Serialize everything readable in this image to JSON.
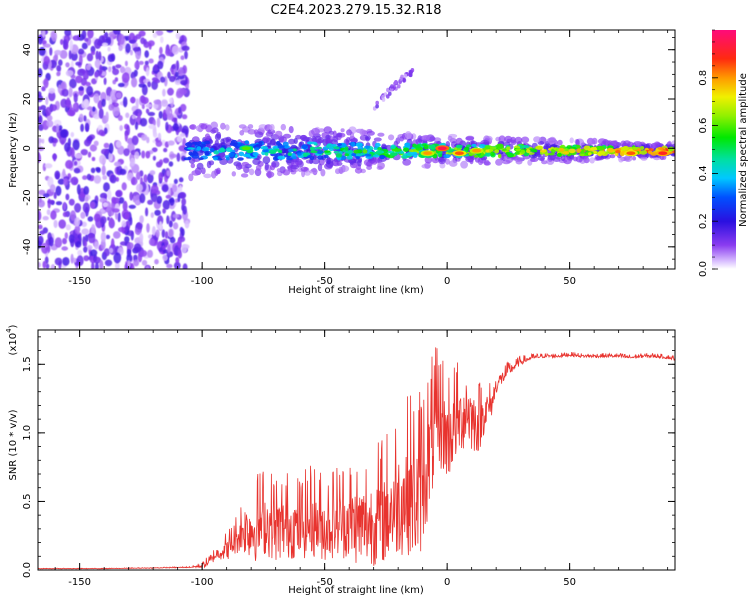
{
  "figure": {
    "title": "C2E4.2023.279.15.32.R18"
  },
  "chart_data": [
    {
      "type": "heatmap",
      "title": "C2E4.2023.279.15.32.R18",
      "xlabel": "Height of straight line (km)",
      "ylabel": "Frequency (Hz)",
      "xlim": [
        -167,
        93
      ],
      "ylim": [
        -49,
        48
      ],
      "xticks": [
        -150,
        -100,
        -50,
        0,
        50
      ],
      "yticks": [
        -40,
        -20,
        0,
        20,
        40
      ],
      "xtick_labels": [
        "-150",
        "-100",
        "-50",
        "0",
        "50"
      ],
      "ytick_labels": [
        "-40",
        "-20",
        "0",
        "20",
        "40"
      ],
      "colorbar": {
        "label": "Normalized spectral amplitude",
        "range": [
          0,
          1
        ],
        "ticks": [
          0.0,
          0.2,
          0.4,
          0.6,
          0.8
        ],
        "tick_labels": [
          "0.0",
          "0.2",
          "0.4",
          "0.6",
          "0.8"
        ],
        "colormap": "rainbow (white-purple-blue-cyan-green-yellow-orange-red-magenta)"
      },
      "features": [
        {
          "name": "broadband noise",
          "x_range": [
            -167,
            -106
          ],
          "y_range": [
            -49,
            48
          ],
          "amplitude": 0.1
        },
        {
          "name": "signal band",
          "x_range": [
            -106,
            93
          ],
          "center_hz": 0,
          "half_width_hz_start": 7,
          "half_width_hz_end": 2,
          "amplitude_start": 0.35,
          "amplitude_end": 0.85
        },
        {
          "name": "streak",
          "x_range": [
            -30,
            -14
          ],
          "y_range": [
            17,
            32
          ],
          "amplitude": 0.12
        }
      ],
      "hot_spots": [
        {
          "x": -82,
          "y": 0,
          "value": 0.6
        },
        {
          "x": -8,
          "y": -2,
          "value": 0.8
        },
        {
          "x": -2,
          "y": 0,
          "value": 0.95
        },
        {
          "x": 5,
          "y": -2,
          "value": 0.85
        },
        {
          "x": 12,
          "y": -1,
          "value": 0.8
        },
        {
          "x": 75,
          "y": -2,
          "value": 0.85
        },
        {
          "x": 88,
          "y": -2,
          "value": 0.9
        }
      ]
    },
    {
      "type": "line",
      "xlabel": "Height of straight line (km)",
      "ylabel": "SNR (10 * v/v)",
      "y_multiplier_label": "(x10",
      "y_multiplier_exp": "4",
      "y_multiplier_close": ")",
      "xlim": [
        -167,
        93
      ],
      "ylim": [
        0,
        1.75
      ],
      "xticks": [
        -150,
        -100,
        -50,
        0,
        50
      ],
      "yticks": [
        0.0,
        0.5,
        1.0,
        1.5
      ],
      "xtick_labels": [
        "-150",
        "-100",
        "-50",
        "0",
        "50"
      ],
      "ytick_labels": [
        "0.0",
        "0.5",
        "1.0",
        "1.5"
      ],
      "color": "#e8332e",
      "series": [
        {
          "name": "SNR",
          "x": [
            -167,
            -140,
            -120,
            -105,
            -100,
            -97,
            -94,
            -90,
            -87,
            -84,
            -82,
            -78,
            -75,
            -70,
            -65,
            -60,
            -55,
            -50,
            -45,
            -40,
            -35,
            -30,
            -25,
            -20,
            -15,
            -12,
            -9,
            -5,
            -2,
            0,
            3,
            6,
            8,
            10,
            13,
            15,
            18,
            20,
            25,
            30,
            35,
            40,
            45,
            50,
            55,
            60,
            65,
            70,
            75,
            80,
            85,
            90,
            93
          ],
          "values": [
            0.01,
            0.01,
            0.015,
            0.02,
            0.03,
            0.06,
            0.12,
            0.15,
            0.2,
            0.28,
            0.3,
            0.3,
            0.35,
            0.3,
            0.32,
            0.3,
            0.35,
            0.3,
            0.35,
            0.35,
            0.32,
            0.35,
            0.4,
            0.5,
            0.55,
            0.5,
            0.7,
            1.0,
            1.05,
            0.95,
            1.05,
            1.1,
            1.2,
            1.1,
            1.05,
            1.15,
            1.2,
            1.35,
            1.45,
            1.52,
            1.55,
            1.56,
            1.56,
            1.57,
            1.56,
            1.56,
            1.56,
            1.56,
            1.55,
            1.56,
            1.56,
            1.55,
            1.54
          ],
          "noise_amplitude": [
            0.002,
            0.002,
            0.003,
            0.004,
            0.02,
            0.04,
            0.05,
            0.1,
            0.12,
            0.18,
            0.25,
            0.3,
            0.3,
            0.3,
            0.3,
            0.28,
            0.32,
            0.3,
            0.32,
            0.35,
            0.38,
            0.4,
            0.45,
            0.5,
            0.55,
            0.6,
            0.55,
            0.45,
            0.4,
            0.4,
            0.35,
            0.3,
            0.4,
            0.3,
            0.25,
            0.2,
            0.12,
            0.08,
            0.05,
            0.03,
            0.02,
            0.015,
            0.015,
            0.015,
            0.015,
            0.015,
            0.015,
            0.015,
            0.015,
            0.015,
            0.015,
            0.015,
            0.015
          ]
        }
      ]
    }
  ]
}
